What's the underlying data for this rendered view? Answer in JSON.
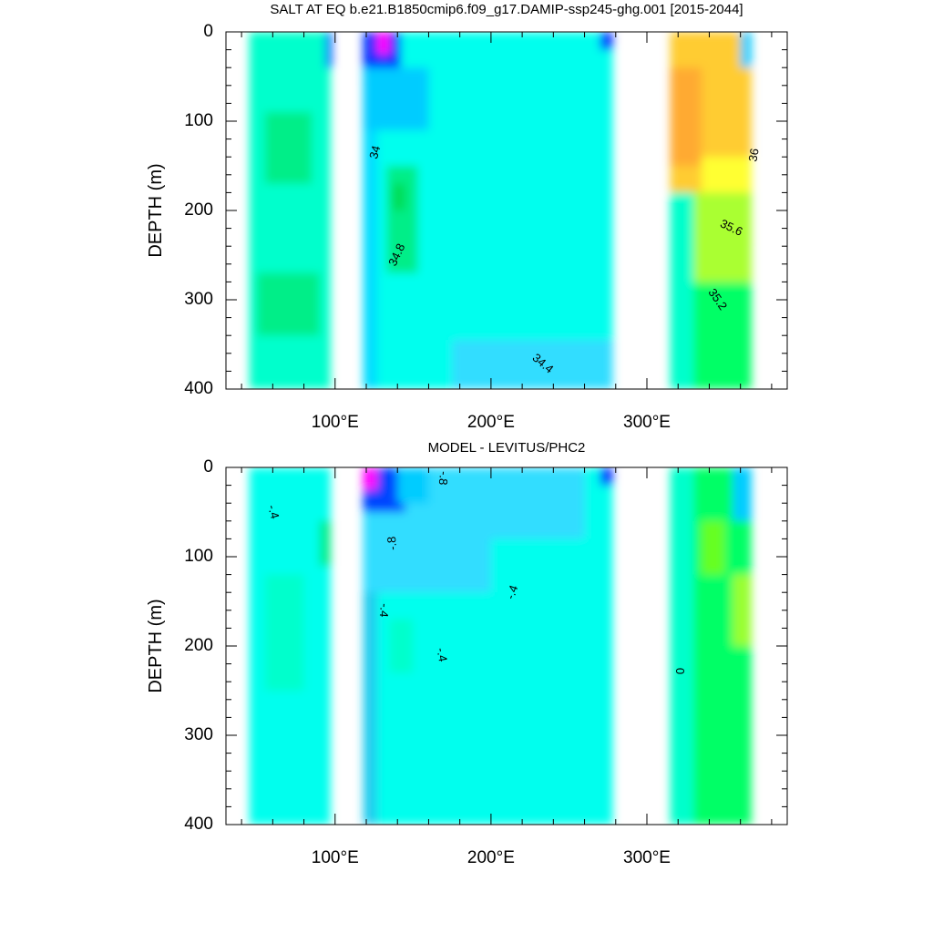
{
  "chart_data": [
    {
      "type": "contour",
      "title": "SALT AT EQ b.e21.B1850cmip6.f09_g17.DAMIP-ssp245-ghg.001 [2015-2044]",
      "ylabel": "DEPTH (m)",
      "xlabel": "",
      "x_range": [
        30,
        390
      ],
      "y_range": [
        0,
        400
      ],
      "y_inverted": true,
      "x_ticks": [
        {
          "value": 100,
          "label": "100°E"
        },
        {
          "value": 200,
          "label": "200°E"
        },
        {
          "value": 300,
          "label": "300°E"
        }
      ],
      "y_ticks": [
        {
          "value": 0,
          "label": "0"
        },
        {
          "value": 100,
          "label": "100"
        },
        {
          "value": 200,
          "label": "200"
        },
        {
          "value": 300,
          "label": "300"
        },
        {
          "value": 400,
          "label": "400"
        }
      ],
      "contour_labels": [
        {
          "text": "34",
          "x": 126,
          "y": 135,
          "rot": -75
        },
        {
          "text": "34.8",
          "x": 140,
          "y": 250,
          "rot": -65
        },
        {
          "text": "34.4",
          "x": 233,
          "y": 372,
          "rot": 40
        },
        {
          "text": "36",
          "x": 369,
          "y": 138,
          "rot": -80
        },
        {
          "text": "35.6",
          "x": 354,
          "y": 220,
          "rot": 25
        },
        {
          "text": "35.2",
          "x": 345,
          "y": 300,
          "rot": 55
        }
      ],
      "regions": [
        {
          "name": "indian-ocean",
          "x": [
            45,
            97
          ],
          "y": [
            0,
            400
          ],
          "color": "#00ffcc"
        },
        {
          "name": "indian-ocean-fresh-edge",
          "x": [
            94,
            98
          ],
          "y": [
            0,
            40
          ],
          "color": "#0044ff"
        },
        {
          "name": "indian-ocean-salty-core",
          "x": [
            55,
            85
          ],
          "y": [
            90,
            170
          ],
          "color": "#00ee88"
        },
        {
          "name": "indian-ocean-deep-salty",
          "x": [
            50,
            90
          ],
          "y": [
            270,
            340
          ],
          "color": "#00ee88"
        },
        {
          "name": "maritime-strip",
          "x": [
            118,
            131
          ],
          "y": [
            0,
            400
          ],
          "color": "#00ddff"
        },
        {
          "name": "pacific-ocean",
          "x": [
            127,
            278
          ],
          "y": [
            0,
            400
          ],
          "color": "#00ffee"
        },
        {
          "name": "pacific-fresh-west-surface",
          "x": [
            118,
            142
          ],
          "y": [
            0,
            60
          ],
          "color": "#0033ff"
        },
        {
          "name": "pacific-freshest-core",
          "x": [
            127,
            135
          ],
          "y": [
            0,
            25
          ],
          "color": "#ff00ff"
        },
        {
          "name": "pacific-fresh-tongue",
          "x": [
            118,
            160
          ],
          "y": [
            40,
            110
          ],
          "color": "#00ccff"
        },
        {
          "name": "pacific-salty-core",
          "x": [
            133,
            153
          ],
          "y": [
            150,
            270
          ],
          "color": "#00ee88"
        },
        {
          "name": "pacific-salty-peak",
          "x": [
            137,
            145
          ],
          "y": [
            170,
            200
          ],
          "color": "#00dd55"
        },
        {
          "name": "pacific-deep-fresh",
          "x": [
            175,
            278
          ],
          "y": [
            345,
            400
          ],
          "color": "#33ddff"
        },
        {
          "name": "pacific-east-fresh",
          "x": [
            270,
            278
          ],
          "y": [
            0,
            20
          ],
          "color": "#0033ff"
        },
        {
          "name": "atlantic-ocean",
          "x": [
            315,
            367
          ],
          "y": [
            0,
            400
          ],
          "color": "#00ff66"
        },
        {
          "name": "atlantic-salty-upper",
          "x": [
            315,
            367
          ],
          "y": [
            0,
            180
          ],
          "color": "#ffcc33"
        },
        {
          "name": "atlantic-saltiest-core",
          "x": [
            315,
            335
          ],
          "y": [
            40,
            150
          ],
          "color": "#ffaa33"
        },
        {
          "name": "atlantic-yellow-band",
          "x": [
            335,
            367
          ],
          "y": [
            140,
            240
          ],
          "color": "#ffff33"
        },
        {
          "name": "atlantic-green-band",
          "x": [
            330,
            367
          ],
          "y": [
            180,
            280
          ],
          "color": "#aaff33"
        },
        {
          "name": "atlantic-west-fresh-edge",
          "x": [
            315,
            330
          ],
          "y": [
            180,
            400
          ],
          "color": "#00ffcc"
        },
        {
          "name": "atlantic-east-fresh-surface",
          "x": [
            360,
            367
          ],
          "y": [
            0,
            40
          ],
          "color": "#00ccff"
        }
      ]
    },
    {
      "type": "contour",
      "title": "MODEL - LEVITUS/PHC2",
      "ylabel": "DEPTH (m)",
      "xlabel": "",
      "x_range": [
        30,
        390
      ],
      "y_range": [
        0,
        400
      ],
      "y_inverted": true,
      "x_ticks": [
        {
          "value": 100,
          "label": "100°E"
        },
        {
          "value": 200,
          "label": "200°E"
        },
        {
          "value": 300,
          "label": "300°E"
        }
      ],
      "y_ticks": [
        {
          "value": 0,
          "label": "0"
        },
        {
          "value": 100,
          "label": "100"
        },
        {
          "value": 200,
          "label": "200"
        },
        {
          "value": 300,
          "label": "300"
        },
        {
          "value": 400,
          "label": "400"
        }
      ],
      "contour_labels": [
        {
          "text": "-.4",
          "x": 60,
          "y": 50,
          "rot": 75
        },
        {
          "text": "-.8",
          "x": 169,
          "y": 12,
          "rot": 95
        },
        {
          "text": "-.8",
          "x": 137,
          "y": 85,
          "rot": -95
        },
        {
          "text": "-.4",
          "x": 131,
          "y": 160,
          "rot": 95
        },
        {
          "text": "-.4",
          "x": 214,
          "y": 140,
          "rot": -70
        },
        {
          "text": "-.4",
          "x": 168,
          "y": 210,
          "rot": 80
        },
        {
          "text": "0",
          "x": 322,
          "y": 228,
          "rot": -90
        }
      ],
      "regions": [
        {
          "name": "indian-ocean",
          "x": [
            45,
            97
          ],
          "y": [
            0,
            400
          ],
          "color": "#00ffee"
        },
        {
          "name": "indian-ocean-pos-band",
          "x": [
            55,
            80
          ],
          "y": [
            120,
            250
          ],
          "color": "#00ffcc"
        },
        {
          "name": "indian-ocean-east-pos",
          "x": [
            90,
            97
          ],
          "y": [
            60,
            110
          ],
          "color": "#00ee88"
        },
        {
          "name": "maritime-strip",
          "x": [
            118,
            131
          ],
          "y": [
            0,
            400
          ],
          "color": "#22ccee"
        },
        {
          "name": "pacific-ocean",
          "x": [
            127,
            278
          ],
          "y": [
            0,
            400
          ],
          "color": "#00ffee"
        },
        {
          "name": "pacific-neg-west",
          "x": [
            118,
            200
          ],
          "y": [
            0,
            140
          ],
          "color": "#33ddff"
        },
        {
          "name": "pacific-neg-strong",
          "x": [
            118,
            145
          ],
          "y": [
            0,
            50
          ],
          "color": "#0044ff"
        },
        {
          "name": "pacific-neg-strongest",
          "x": [
            118,
            127
          ],
          "y": [
            0,
            25
          ],
          "color": "#ff00ff"
        },
        {
          "name": "pacific-neg-mid",
          "x": [
            140,
            160
          ],
          "y": [
            0,
            40
          ],
          "color": "#00ccff"
        },
        {
          "name": "pacific-neg-tongue",
          "x": [
            200,
            260
          ],
          "y": [
            0,
            80
          ],
          "color": "#33ddff"
        },
        {
          "name": "pacific-pos-patch",
          "x": [
            135,
            150
          ],
          "y": [
            170,
            230
          ],
          "color": "#00ffcc"
        },
        {
          "name": "pacific-east-neg",
          "x": [
            270,
            278
          ],
          "y": [
            0,
            20
          ],
          "color": "#0033ff"
        },
        {
          "name": "atlantic-ocean",
          "x": [
            315,
            367
          ],
          "y": [
            0,
            400
          ],
          "color": "#00ff66"
        },
        {
          "name": "atlantic-near-zero",
          "x": [
            315,
            330
          ],
          "y": [
            0,
            400
          ],
          "color": "#00ffcc"
        },
        {
          "name": "atlantic-pos-strong",
          "x": [
            335,
            350
          ],
          "y": [
            60,
            120
          ],
          "color": "#66ff22"
        },
        {
          "name": "atlantic-pos-strongest",
          "x": [
            355,
            367
          ],
          "y": [
            120,
            200
          ],
          "color": "#99ff33"
        },
        {
          "name": "atlantic-east-surface",
          "x": [
            355,
            367
          ],
          "y": [
            0,
            60
          ],
          "color": "#00ccff"
        }
      ]
    }
  ]
}
